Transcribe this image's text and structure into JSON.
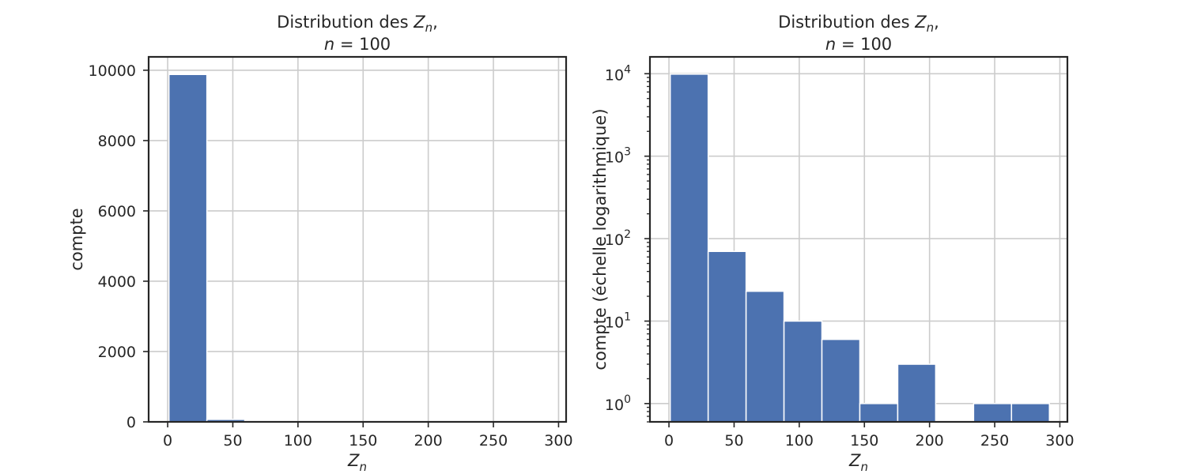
{
  "chart_data": [
    {
      "type": "bar",
      "title_line1_prefix": "Distribution des ",
      "title_line1_var": "Z",
      "title_line1_sub": "n",
      "title_line1_suffix": ",",
      "title_line2_var": "n",
      "title_line2_rest": " = 100",
      "xlabel_var": "Z",
      "xlabel_sub": "n",
      "ylabel": "compte",
      "xlim": [
        -14.6,
        305.8
      ],
      "ylim": [
        0,
        10380
      ],
      "yscale": "linear",
      "grid": true,
      "bar_color": "#4c72b0",
      "xticks": [
        0,
        50,
        100,
        150,
        200,
        250,
        300
      ],
      "xtick_labels": [
        "0",
        "50",
        "100",
        "150",
        "200",
        "250",
        "300"
      ],
      "yticks": [
        0,
        2000,
        4000,
        6000,
        8000,
        10000
      ],
      "ytick_labels": [
        "0",
        "2000",
        "4000",
        "6000",
        "8000",
        "10000"
      ],
      "bin_edges": [
        1,
        30.1,
        59.2,
        88.3,
        117.4,
        146.5,
        175.6,
        204.7,
        233.8,
        262.9,
        292
      ],
      "values": [
        9880,
        70,
        23,
        10,
        6,
        1,
        3,
        0,
        1,
        1
      ]
    },
    {
      "type": "bar",
      "title_line1_prefix": "Distribution des ",
      "title_line1_var": "Z",
      "title_line1_sub": "n",
      "title_line1_suffix": ",",
      "title_line2_var": "n",
      "title_line2_rest": " = 100",
      "xlabel_var": "Z",
      "xlabel_sub": "n",
      "ylabel": "compte (échelle logarithmique)",
      "xlim": [
        -14.6,
        305.8
      ],
      "ylim": [
        0.6,
        16000
      ],
      "yscale": "log",
      "grid": true,
      "bar_color": "#4c72b0",
      "xticks": [
        0,
        50,
        100,
        150,
        200,
        250,
        300
      ],
      "xtick_labels": [
        "0",
        "50",
        "100",
        "150",
        "200",
        "250",
        "300"
      ],
      "yticks": [
        1,
        10,
        100,
        1000,
        10000
      ],
      "ytick_exponents": [
        "0",
        "1",
        "2",
        "3",
        "4"
      ],
      "ytick_base": "10",
      "bin_edges": [
        1,
        30.1,
        59.2,
        88.3,
        117.4,
        146.5,
        175.6,
        204.7,
        233.8,
        262.9,
        292
      ],
      "values": [
        9880,
        70,
        23,
        10,
        6,
        1,
        3,
        0,
        1,
        1
      ]
    }
  ]
}
